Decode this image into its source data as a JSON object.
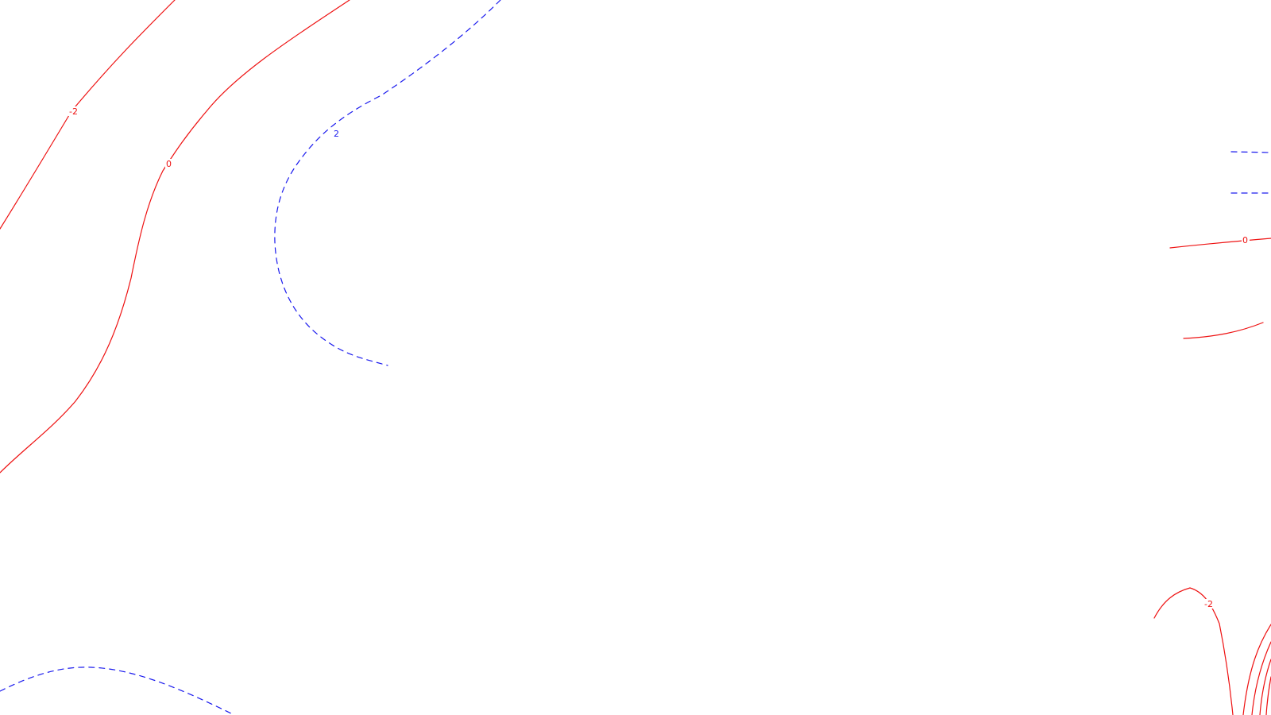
{
  "map": {
    "colors": {
      "background": "#ffffff",
      "negative_contour": "#ee1111",
      "positive_contour": "#1a1aee"
    },
    "labels": {
      "left_minus_two": "-2",
      "left_zero": "0",
      "center_two": "2",
      "right_zero": "0",
      "bottom_right_minus_two": "-2"
    }
  }
}
